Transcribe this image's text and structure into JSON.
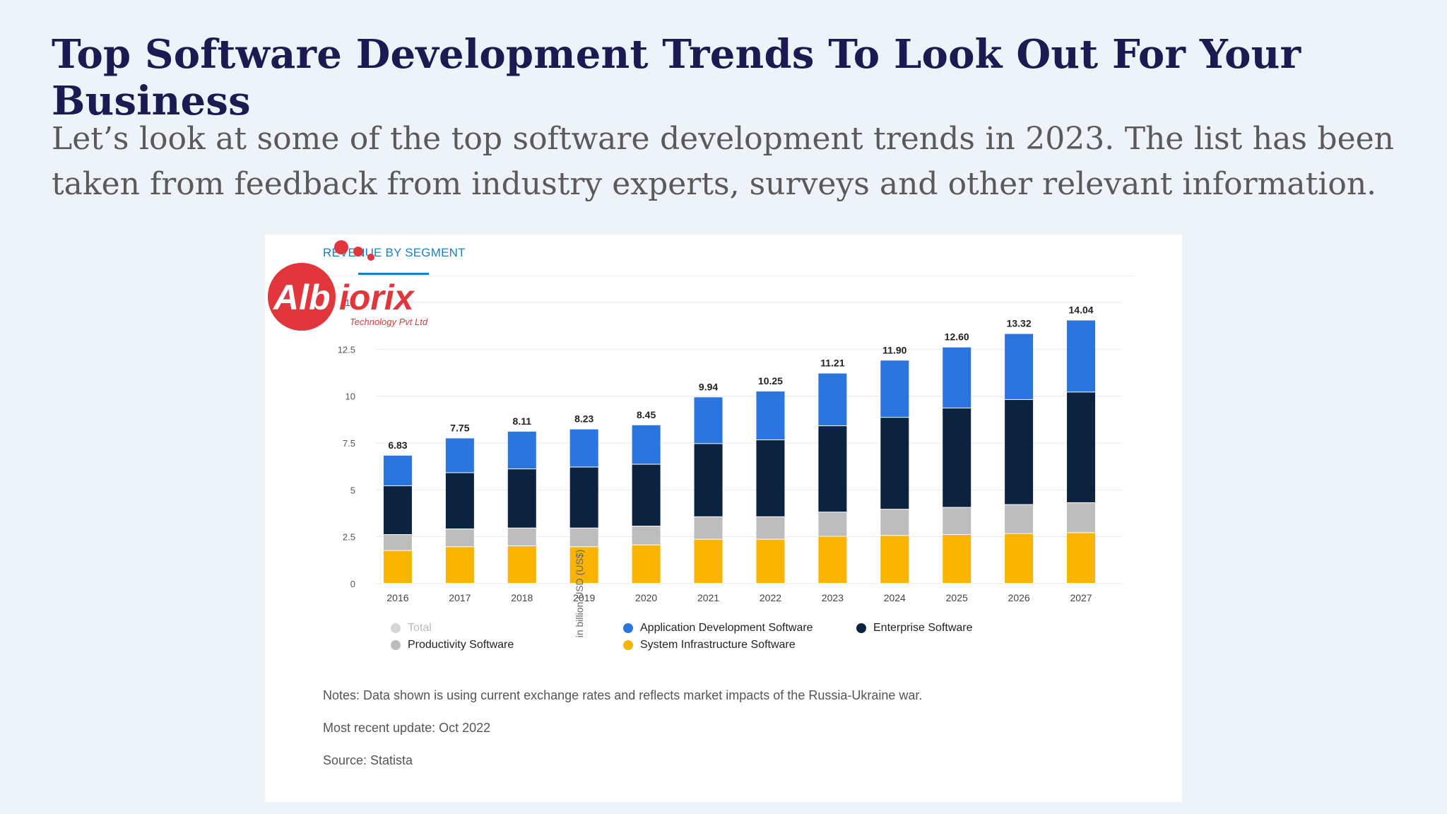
{
  "header": {
    "title": "Top Software Development Trends To Look Out For Your Business",
    "intro": "Let’s look at some of the top software development trends in 2023. The list has been taken from feedback from industry experts, surveys and other relevant information."
  },
  "card": {
    "title": "REVENUE BY SEGMENT",
    "notes": [
      "Notes: Data shown is using current exchange rates and reflects market impacts of the Russia-Ukraine war.",
      "Most recent update: Oct 2022",
      "Source: Statista"
    ],
    "logo": {
      "text": "Albiorix",
      "tagline": "Technology Pvt Ltd",
      "colors": {
        "red": "#e0363c",
        "dark": "#2f3a47"
      }
    }
  },
  "chart_data": {
    "type": "bar",
    "stacked": true,
    "title": "REVENUE BY SEGMENT",
    "ylabel": "in billion USD (US$)",
    "ylim": [
      0,
      15
    ],
    "yticks": [
      "0",
      "2.5",
      "5",
      "7.5",
      "10",
      "12.5",
      "15"
    ],
    "categories": [
      "2016",
      "2017",
      "2018",
      "2019",
      "2020",
      "2021",
      "2022",
      "2023",
      "2024",
      "2025",
      "2026",
      "2027"
    ],
    "totals": [
      "6.83",
      "7.75",
      "8.11",
      "8.23",
      "8.45",
      "9.94",
      "10.25",
      "11.21",
      "11.90",
      "12.60",
      "13.32",
      "14.04"
    ],
    "series": [
      {
        "name": "System Infrastructure Software",
        "color": "#f8b400",
        "values": [
          1.75,
          1.95,
          2.0,
          1.95,
          2.05,
          2.35,
          2.35,
          2.5,
          2.55,
          2.6,
          2.65,
          2.7
        ]
      },
      {
        "name": "Productivity Software",
        "color": "#bdbdbd",
        "values": [
          0.85,
          0.95,
          0.95,
          1.0,
          1.0,
          1.2,
          1.2,
          1.3,
          1.4,
          1.45,
          1.55,
          1.6
        ]
      },
      {
        "name": "Enterprise Software",
        "color": "#0c2340",
        "values": [
          2.6,
          3.0,
          3.15,
          3.25,
          3.3,
          3.9,
          4.1,
          4.6,
          4.9,
          5.3,
          5.6,
          5.9
        ]
      },
      {
        "name": "Application Development Software",
        "color": "#2b76de",
        "values": [
          1.63,
          1.85,
          2.01,
          2.03,
          2.1,
          2.49,
          2.6,
          2.81,
          3.05,
          3.25,
          3.52,
          3.84
        ]
      }
    ],
    "legend": [
      {
        "label": "Total",
        "color": "#d6d6d6",
        "muted": true
      },
      {
        "label": "Productivity Software",
        "color": "#bdbdbd"
      },
      {
        "label": "Application Development Software",
        "color": "#2b76de"
      },
      {
        "label": "System Infrastructure Software",
        "color": "#f8b400"
      },
      {
        "label": "Enterprise Software",
        "color": "#0c2340"
      }
    ],
    "legend_position": "bottom",
    "grid": true
  }
}
